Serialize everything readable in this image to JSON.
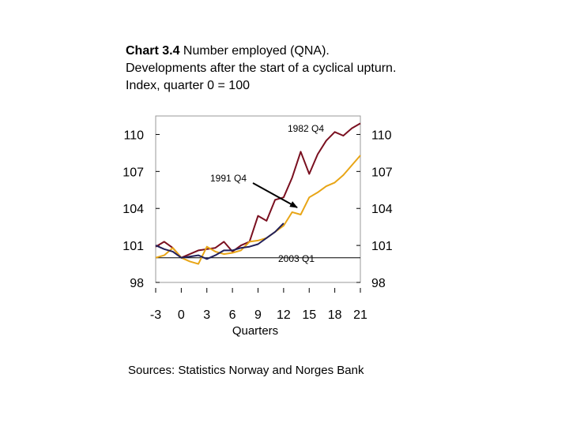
{
  "title": {
    "bold": "Chart 3.4",
    "rest": " Number employed (QNA). Developments after the start of a cyclical upturn. Index, quarter 0 = 100"
  },
  "source": "Sources: Statistics Norway and Norges Bank",
  "chart_data": {
    "type": "line",
    "title": "Chart 3.4 Number employed (QNA). Developments after the start of a cyclical upturn. Index, quarter 0 = 100",
    "xlabel": "Quarters",
    "ylabel": "",
    "xlim": [
      -3,
      21
    ],
    "ylim": [
      98,
      111.5
    ],
    "x_ticks": [
      -3,
      0,
      3,
      6,
      9,
      12,
      15,
      18,
      21
    ],
    "y_ticks": [
      98,
      101,
      104,
      107,
      110
    ],
    "grid": false,
    "series": [
      {
        "name": "1982 Q4",
        "color": "#7a1020",
        "x": [
          -3,
          -2,
          -1,
          0,
          1,
          2,
          3,
          4,
          5,
          6,
          7,
          8,
          9,
          10,
          11,
          12,
          13,
          14,
          15,
          16,
          17,
          18,
          19,
          20,
          21
        ],
        "values": [
          100.9,
          101.3,
          100.8,
          100.0,
          100.3,
          100.6,
          100.7,
          100.8,
          101.3,
          100.5,
          101.0,
          101.3,
          103.4,
          103.0,
          104.7,
          104.9,
          106.5,
          108.6,
          106.8,
          108.4,
          109.5,
          110.2,
          109.9,
          110.5,
          110.9
        ]
      },
      {
        "name": "1991 Q4",
        "color": "#e8a516",
        "x": [
          -3,
          -2,
          -1,
          0,
          1,
          2,
          3,
          4,
          5,
          6,
          7,
          8,
          9,
          10,
          11,
          12,
          13,
          14,
          15,
          16,
          17,
          18,
          19,
          20,
          21
        ],
        "values": [
          100.0,
          100.2,
          100.8,
          100.0,
          99.7,
          99.5,
          100.9,
          100.5,
          100.3,
          100.4,
          100.6,
          101.3,
          101.4,
          101.6,
          102.1,
          102.6,
          103.7,
          103.5,
          104.9,
          105.3,
          105.8,
          106.1,
          106.7,
          107.5,
          108.3
        ]
      },
      {
        "name": "2003 Q1",
        "color": "#22205a",
        "x": [
          -3,
          -2,
          -1,
          0,
          1,
          2,
          3,
          4,
          5,
          6,
          7,
          8,
          9,
          10,
          11,
          12
        ],
        "values": [
          101.0,
          100.7,
          100.5,
          100.0,
          100.1,
          100.2,
          99.9,
          100.2,
          100.6,
          100.6,
          100.8,
          100.9,
          101.1,
          101.6,
          102.1,
          102.8
        ]
      }
    ],
    "annotations": [
      {
        "text": "1982 Q4",
        "points_to": "1982 Q4 series"
      },
      {
        "text": "1991 Q4",
        "points_to": "1991 Q4 series",
        "arrow": true
      },
      {
        "text": "2003 Q1",
        "points_to": "2003 Q1 series"
      }
    ]
  }
}
